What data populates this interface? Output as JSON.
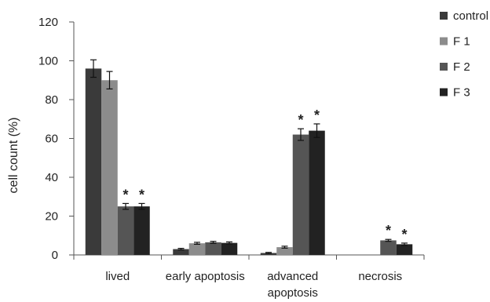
{
  "chart_data": {
    "type": "bar",
    "title": "",
    "xlabel": "",
    "ylabel": "cell count (%)",
    "ylim": [
      0,
      120
    ],
    "yticks": [
      0,
      20,
      40,
      60,
      80,
      100,
      120
    ],
    "grid": false,
    "legend_position": "top-right",
    "categories": [
      [
        "lived"
      ],
      [
        "early apoptosis"
      ],
      [
        "advanced",
        "apoptosis"
      ],
      [
        "necrosis"
      ]
    ],
    "series": [
      {
        "name": "control",
        "color": "#3a3a3a",
        "values": [
          96,
          3,
          1,
          0
        ],
        "errors": [
          4.5,
          0.4,
          0.3,
          0
        ]
      },
      {
        "name": "F 1",
        "color": "#8c8c8c",
        "values": [
          90,
          6,
          4,
          0
        ],
        "errors": [
          4.5,
          0.5,
          0.5,
          0
        ]
      },
      {
        "name": "F 2",
        "color": "#555555",
        "values": [
          25,
          6.5,
          62,
          7.5
        ],
        "errors": [
          1.5,
          0.5,
          3,
          0.5
        ]
      },
      {
        "name": "F 3",
        "color": "#222222",
        "values": [
          25,
          6.2,
          64,
          5.5
        ],
        "errors": [
          1.5,
          0.5,
          3.5,
          0.6
        ]
      }
    ],
    "annotations": [
      {
        "category": 0,
        "series": 2,
        "text": "*"
      },
      {
        "category": 0,
        "series": 3,
        "text": "*"
      },
      {
        "category": 2,
        "series": 2,
        "text": "*"
      },
      {
        "category": 2,
        "series": 3,
        "text": "*"
      },
      {
        "category": 3,
        "series": 2,
        "text": "*"
      },
      {
        "category": 3,
        "series": 3,
        "text": "*"
      }
    ]
  }
}
